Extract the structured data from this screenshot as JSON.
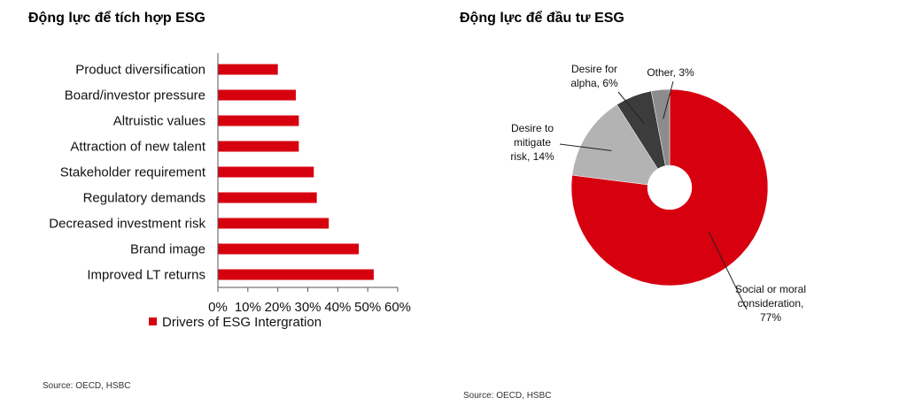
{
  "left_title": "Động lực để tích hợp ESG",
  "right_title": "Động lực để đầu tư ESG",
  "left_source": "Source: OECD, HSBC",
  "right_source": "Source: OECD, HSBC",
  "colors": {
    "bar": "#d7000f",
    "pie_main": "#d7000f",
    "pie_light": "#b3b3b3",
    "pie_dark": "#3c3c3c",
    "pie_mid": "#8c8c8c"
  },
  "chart_data": [
    {
      "type": "bar",
      "orientation": "horizontal",
      "categories": [
        "Product diversification",
        "Board/investor pressure",
        "Altruistic values",
        "Attraction of new talent",
        "Stakeholder requirement",
        "Regulatory demands",
        "Decreased investment risk",
        "Brand image",
        "Improved LT returns"
      ],
      "series": [
        {
          "name": "Drivers of ESG Intergration",
          "values": [
            20,
            26,
            27,
            27,
            32,
            33,
            37,
            47,
            52
          ]
        }
      ],
      "xlim": [
        0,
        60
      ],
      "xticks": [
        "0%",
        "10%",
        "20%",
        "30%",
        "40%",
        "50%",
        "60%"
      ],
      "legend": "bottom"
    },
    {
      "type": "pie",
      "donut": true,
      "slices": [
        {
          "label": "Social or moral consideration, 77%",
          "value": 77,
          "label_lines": [
            "Social or moral",
            "consideration,",
            "77%"
          ]
        },
        {
          "label": "Desire to mitigate risk, 14%",
          "value": 14,
          "label_lines": [
            "Desire to",
            "mitigate",
            "risk, 14%"
          ]
        },
        {
          "label": "Desire for alpha, 6%",
          "value": 6,
          "label_lines": [
            "Desire for",
            "alpha, 6%"
          ]
        },
        {
          "label": "Other, 3%",
          "value": 3,
          "label_lines": [
            "Other, 3%"
          ]
        }
      ]
    }
  ]
}
